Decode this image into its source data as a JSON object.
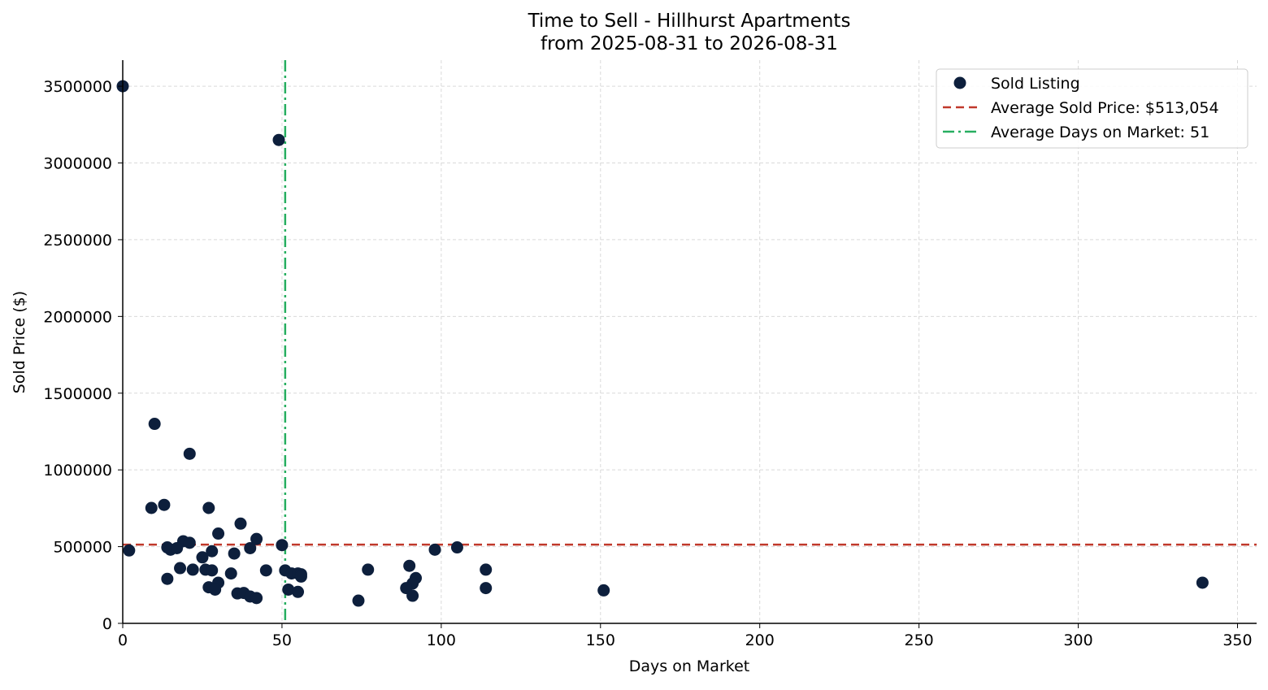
{
  "chart_data": {
    "type": "scatter",
    "title": "Time to Sell - Hillhurst Apartments",
    "subtitle": "from 2025-08-31 to 2026-08-31",
    "xlabel": "Days on Market",
    "ylabel": "Sold Price ($)",
    "xlim": [
      0,
      356
    ],
    "ylim": [
      0,
      3670000
    ],
    "x_ticks": [
      0,
      50,
      100,
      150,
      200,
      250,
      300,
      350
    ],
    "x_tick_labels": [
      "0",
      "50",
      "100",
      "150",
      "200",
      "250",
      "300",
      "350"
    ],
    "y_ticks": [
      0,
      500000,
      1000000,
      1500000,
      2000000,
      2500000,
      3000000,
      3500000
    ],
    "y_tick_labels": [
      "0",
      "500000",
      "1000000",
      "1500000",
      "2000000",
      "2500000",
      "3000000",
      "3500000"
    ],
    "grid": true,
    "legend_position": "top-right",
    "series": [
      {
        "name": "Sold Listing",
        "color": "#0d1f3c",
        "points": [
          [
            0,
            3500000
          ],
          [
            49,
            3150000
          ],
          [
            10,
            1300000
          ],
          [
            21,
            1105000
          ],
          [
            9,
            752000
          ],
          [
            13,
            772000
          ],
          [
            27,
            752000
          ],
          [
            37,
            650000
          ],
          [
            30,
            585000
          ],
          [
            42,
            550000
          ],
          [
            19,
            535000
          ],
          [
            21,
            525000
          ],
          [
            50,
            510000
          ],
          [
            14,
            495000
          ],
          [
            15,
            480000
          ],
          [
            17,
            490000
          ],
          [
            40,
            490000
          ],
          [
            2,
            475000
          ],
          [
            28,
            470000
          ],
          [
            35,
            455000
          ],
          [
            25,
            430000
          ],
          [
            105,
            495000
          ],
          [
            98,
            480000
          ],
          [
            90,
            375000
          ],
          [
            77,
            350000
          ],
          [
            114,
            350000
          ],
          [
            22,
            350000
          ],
          [
            26,
            350000
          ],
          [
            28,
            345000
          ],
          [
            45,
            345000
          ],
          [
            51,
            345000
          ],
          [
            18,
            360000
          ],
          [
            34,
            325000
          ],
          [
            53,
            325000
          ],
          [
            55,
            325000
          ],
          [
            56,
            320000
          ],
          [
            56,
            305000
          ],
          [
            92,
            295000
          ],
          [
            14,
            290000
          ],
          [
            30,
            265000
          ],
          [
            91,
            260000
          ],
          [
            27,
            235000
          ],
          [
            29,
            220000
          ],
          [
            52,
            220000
          ],
          [
            89,
            230000
          ],
          [
            114,
            230000
          ],
          [
            151,
            215000
          ],
          [
            55,
            205000
          ],
          [
            36,
            195000
          ],
          [
            38,
            198000
          ],
          [
            40,
            175000
          ],
          [
            42,
            165000
          ],
          [
            91,
            180000
          ],
          [
            74,
            148000
          ],
          [
            339,
            265000
          ]
        ]
      }
    ],
    "reference_lines": [
      {
        "name": "Average Sold Price: $513,054",
        "orientation": "horizontal",
        "value": 513054,
        "color": "#c0392b",
        "style": "dashed"
      },
      {
        "name": "Average Days on Market: 51",
        "orientation": "vertical",
        "value": 51,
        "color": "#27ae60",
        "style": "dashdot"
      }
    ]
  }
}
